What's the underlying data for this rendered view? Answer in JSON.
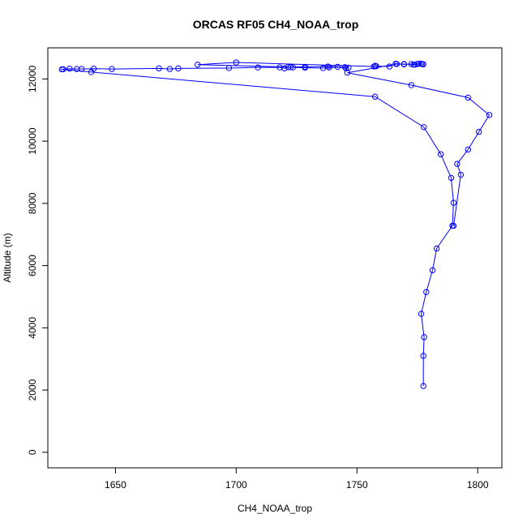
{
  "chart_data": {
    "type": "line",
    "title": "ORCAS RF05 CH4_NOAA_trop",
    "xlabel": "CH4_NOAA_trop",
    "ylabel": "Altitude (m)",
    "xlim": [
      1622,
      1810
    ],
    "ylim": [
      -500,
      13000
    ],
    "xticks": [
      1650,
      1700,
      1750,
      1800
    ],
    "yticks": [
      0,
      2000,
      4000,
      6000,
      8000,
      10000,
      12000
    ],
    "grid": false,
    "legend": "none",
    "series_color": "#0000ff",
    "marker": "open-circle",
    "series": [
      {
        "x": [
          1777.5,
          1777.5,
          1777.8,
          1776.6,
          1778.7,
          1781.3,
          1783.0,
          1789.5,
          1790.0,
          1789.0,
          1784.7,
          1777.7,
          1757.5,
          1640.0,
          1627.8,
          1628.4,
          1631.0,
          1634.0,
          1636.0,
          1641.0,
          1648.5,
          1668.0,
          1672.5,
          1676.0,
          1697.0,
          1709.0,
          1718.0,
          1720.0,
          1721.5,
          1723.5,
          1728.5,
          1736.0,
          1738.5,
          1745.0,
          1746.5,
          1745.5,
          1742.0,
          1738.0,
          1728.5,
          1722.5,
          1684.0,
          1700.0,
          1757.0,
          1757.5,
          1758.0,
          1763.5,
          1766.0,
          1769.5,
          1772.5,
          1774.0,
          1775.0,
          1776.5,
          1777.5,
          1777.0,
          1775.5,
          1773.5,
          1769.5,
          1766.5,
          1746.0,
          1772.5,
          1796.0,
          1804.8,
          1800.5,
          1796.0,
          1791.5,
          1793.0,
          1790.0
        ],
        "y": [
          2130,
          3100,
          3700,
          4450,
          5150,
          5850,
          6550,
          7280,
          8020,
          8820,
          9580,
          10450,
          11430,
          12220,
          12310,
          12310,
          12330,
          12320,
          12320,
          12330,
          12320,
          12340,
          12320,
          12340,
          12350,
          12370,
          12370,
          12340,
          12380,
          12370,
          12360,
          12350,
          12370,
          12380,
          12360,
          12340,
          12390,
          12400,
          12390,
          12380,
          12460,
          12530,
          12400,
          12420,
          12410,
          12400,
          12490,
          12470,
          12480,
          12460,
          12480,
          12490,
          12470,
          12480,
          12490,
          12460,
          12480,
          12480,
          12200,
          11800,
          11400,
          10840,
          10300,
          9730,
          9270,
          8920,
          7280
        ]
      }
    ]
  }
}
